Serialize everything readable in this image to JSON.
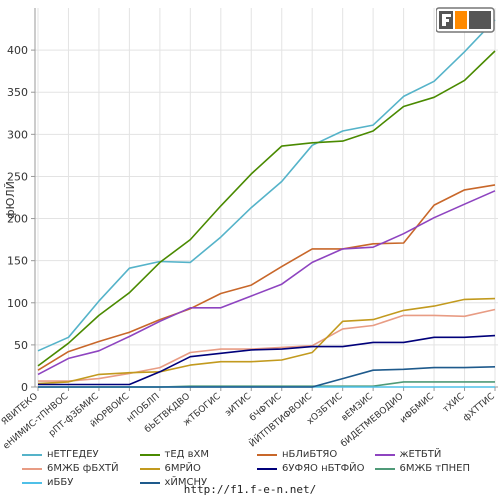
{
  "footer_url": "http://f1.f-e-n.net/",
  "logo_text": "F1EN",
  "chart_data": {
    "type": "line",
    "title": "",
    "xlabel": "",
    "ylabel": "фЮЛЙ",
    "ylim": [
      0,
      450
    ],
    "yticks": [
      0,
      50,
      100,
      150,
      200,
      250,
      300,
      350,
      400
    ],
    "grid": true,
    "legend_position": "bottom",
    "categories": [
      "ЯВИТЕКО",
      "еНИМИС-тПНВОС",
      "рПТ-фЗБМИС",
      "йЮРВОИС",
      "нПОБЛП",
      "бЬЕТВКДВО",
      "жТБОГИС",
      "эИТИС",
      "бЧФТИС",
      "ЙЙТПВТИФВОИС",
      "хОЗБТИС",
      "вЕМЗИС",
      "бИДЕТМЕВОДИО",
      "иФБМИС",
      "тХИС",
      "фХТТИС"
    ],
    "series": [
      {
        "name": "нЕТГЕДЕУ",
        "color": "#55b3c9",
        "values": [
          43,
          59,
          102,
          141,
          149,
          148,
          178,
          213,
          244,
          287,
          304,
          311,
          345,
          363,
          398,
          436
        ]
      },
      {
        "name": "тЕД вХМ",
        "color": "#4a8a00",
        "values": [
          25,
          52,
          85,
          112,
          148,
          175,
          215,
          253,
          286,
          290,
          292,
          304,
          333,
          344,
          364,
          399
        ]
      },
      {
        "name": "нБЛиБТЯО",
        "color": "#c8672a",
        "values": [
          20,
          42,
          54,
          65,
          80,
          93,
          111,
          121,
          143,
          164,
          164,
          170,
          171,
          216,
          234,
          240
        ]
      },
      {
        "name": "жЕТБТЙ",
        "color": "#8e44c0",
        "values": [
          15,
          34,
          43,
          60,
          78,
          94,
          94,
          108,
          122,
          148,
          164,
          166,
          182,
          201,
          217,
          233
        ]
      },
      {
        "name": "6МЖБ фБХТЙ",
        "color": "#e89c84",
        "values": [
          7,
          7,
          10,
          16,
          23,
          41,
          45,
          45,
          47,
          49,
          69,
          73,
          85,
          85,
          84,
          92
        ]
      },
      {
        "name": "6МРЙО",
        "color": "#c29a1e",
        "values": [
          4,
          6,
          15,
          17,
          18,
          26,
          30,
          30,
          32,
          41,
          78,
          80,
          91,
          96,
          104,
          105
        ]
      },
      {
        "name": "6УФЯО нБТФЙО",
        "color": "#00007a",
        "values": [
          3,
          3,
          3,
          3,
          18,
          36,
          40,
          44,
          45,
          48,
          48,
          53,
          53,
          59,
          59,
          61
        ]
      },
      {
        "name": "6МЖБ тПНЕП",
        "color": "#4f9a78",
        "values": [
          0,
          0,
          0,
          0,
          0,
          1,
          1,
          1,
          1,
          1,
          1,
          1,
          6,
          6,
          6,
          6
        ]
      },
      {
        "name": "иББУ",
        "color": "#4fc0e8",
        "values": [
          0,
          0,
          0,
          0,
          0,
          0,
          0,
          0,
          0,
          0,
          0,
          0,
          0,
          0,
          0,
          0
        ]
      },
      {
        "name": "хЙМСНУ",
        "color": "#1e5a8c",
        "values": [
          0,
          0,
          0,
          0,
          0,
          0,
          0,
          0,
          0,
          0,
          10,
          20,
          21,
          23,
          23,
          24
        ]
      }
    ]
  }
}
